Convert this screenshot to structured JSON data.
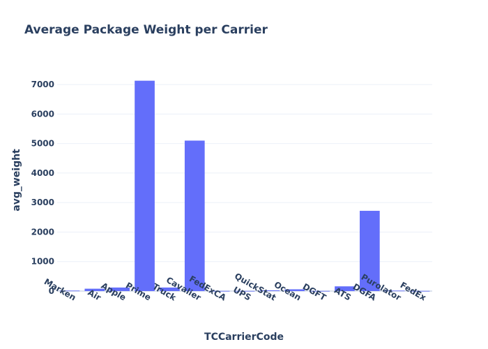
{
  "chart_data": {
    "type": "bar",
    "title": "Average Package Weight per Carrier",
    "xlabel": "TCCarrierCode",
    "ylabel": "avg_weight",
    "categories": [
      "Marken",
      "Air",
      "Apple",
      "Prime",
      "Truck",
      "Cavalier",
      "FedExCA",
      "UPS",
      "QuickStat",
      "Ocean",
      "DGFT",
      "ATS",
      "DGFA",
      "Purolator",
      "FedEx"
    ],
    "values": [
      15,
      80,
      120,
      7130,
      120,
      5100,
      5,
      5,
      25,
      60,
      5,
      160,
      2720,
      15,
      5
    ],
    "ylim": [
      0,
      7500
    ],
    "yticks": [
      0,
      1000,
      2000,
      3000,
      4000,
      5000,
      6000,
      7000
    ],
    "bar_color": "#636efa",
    "grid": true
  }
}
